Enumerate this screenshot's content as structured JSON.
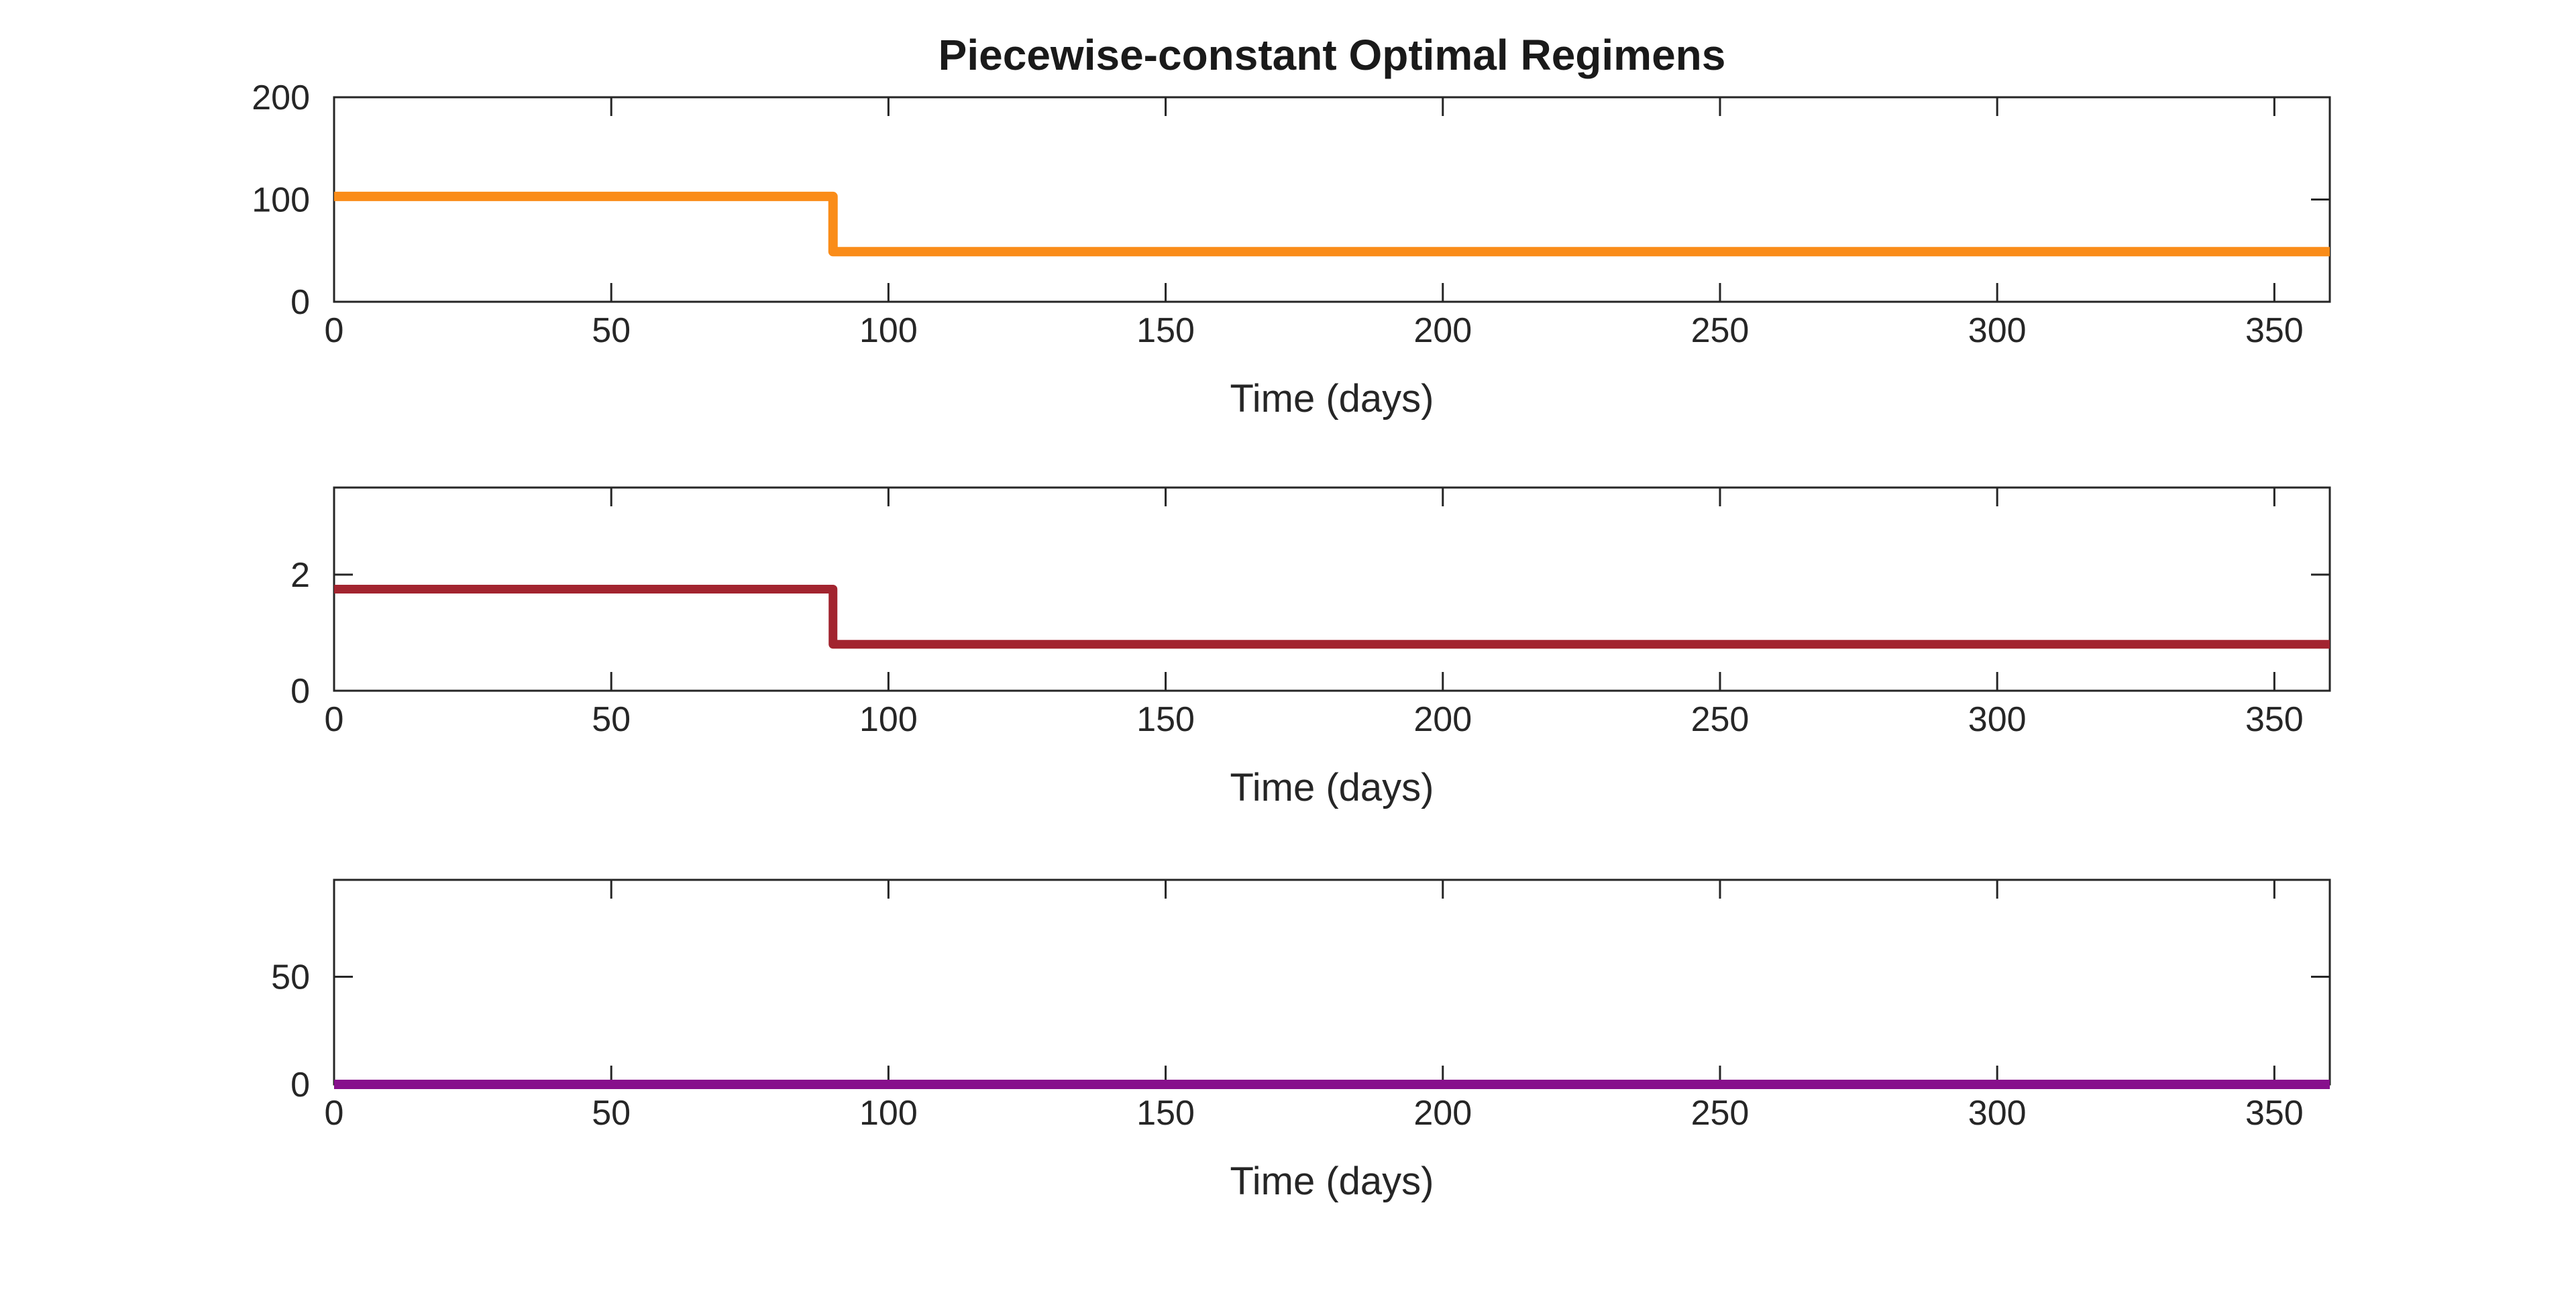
{
  "figure": {
    "background_color": "#ffffff",
    "text_color": "#262626",
    "axis_color": "#262626"
  },
  "chart_data": [
    {
      "type": "line",
      "subtype": "step",
      "title": "Piecewise-constant Optimal Regimens",
      "xlabel": "Time (days)",
      "xlim": [
        0,
        360
      ],
      "xticks": [
        0,
        50,
        100,
        150,
        200,
        250,
        300,
        350
      ],
      "ylim": [
        0,
        200
      ],
      "yticks": [
        0,
        100,
        200
      ],
      "x": [
        0,
        90,
        90,
        360
      ],
      "y": [
        103,
        103,
        49,
        49
      ],
      "color": "#FA8C19",
      "line_width": 14,
      "grid": "off",
      "legend": "none"
    },
    {
      "type": "line",
      "subtype": "step",
      "title": "",
      "xlabel": "Time (days)",
      "xlim": [
        0,
        360
      ],
      "xticks": [
        0,
        50,
        100,
        150,
        200,
        250,
        300,
        350
      ],
      "ylim": [
        0,
        3.5
      ],
      "yticks": [
        0,
        2
      ],
      "x": [
        0,
        90,
        90,
        360
      ],
      "y": [
        1.75,
        1.75,
        0.8,
        0.8
      ],
      "color": "#A2242F",
      "line_width": 13,
      "grid": "off",
      "legend": "none"
    },
    {
      "type": "line",
      "subtype": "step",
      "title": "",
      "xlabel": "Time (days)",
      "xlim": [
        0,
        360
      ],
      "xticks": [
        0,
        50,
        100,
        150,
        200,
        250,
        300,
        350
      ],
      "ylim": [
        0,
        95
      ],
      "yticks": [
        0,
        50
      ],
      "x": [
        0,
        360
      ],
      "y": [
        0,
        0
      ],
      "color": "#870F8C",
      "line_width": 14,
      "grid": "off",
      "legend": "none"
    }
  ]
}
